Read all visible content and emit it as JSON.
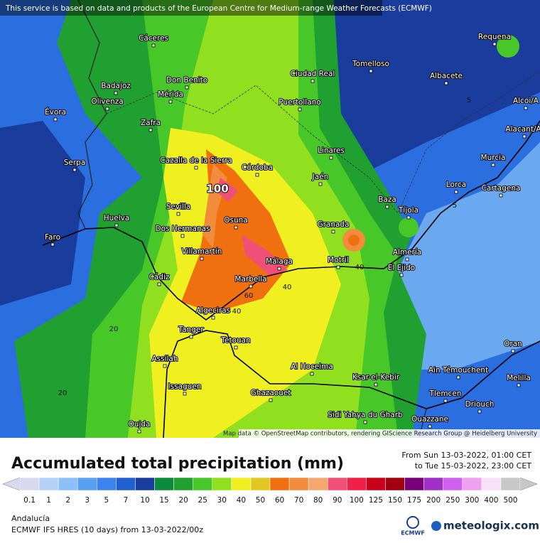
{
  "notice": "This service is based on data and products of the European Centre for Medium-range Weather Forecasts (ECMWF)",
  "attribution": "Map data © OpenStreetMap contributors, rendering GIScience Research Group @ Heidelberg University",
  "places": [
    "Cáceres",
    "Requena",
    "Tomelloso",
    "Ciudad Real",
    "Don Benito",
    "Badajoz",
    "Albacete",
    "Mérida",
    "Olivenza",
    "Puertollano",
    "Évora",
    "Zafra",
    "Alcoi/A",
    "Alacant/Al",
    "Linares",
    "Cazalla de la Sierra",
    "Córdoba",
    "Serpa",
    "Jaén",
    "Murcia",
    "Lorca",
    "Cartagena",
    "Baza",
    "Tíjola",
    "Sevilla",
    "Huelva",
    "Osuna",
    "Granada",
    "Dos Hermanas",
    "Faro",
    "Almería",
    "Villamartín",
    "Motril",
    "Málaga",
    "El Ejido",
    "Cádiz",
    "Marbella",
    "Algeciras",
    "Tanger",
    "Tetouan",
    "Oran",
    "Assilah",
    "Al Hoceima",
    "Ain Témouchent",
    "Melilla",
    "Ksar-el-Kebir",
    "Issaguen",
    "Ghazaouet",
    "Tlemcen",
    "Driouch",
    "Sidi Yahya du Gharb",
    "Oujda",
    "Ouazzane"
  ],
  "contour_labels": [
    100,
    60,
    40,
    40,
    40,
    20,
    20,
    5,
    5
  ],
  "legend": {
    "title": "Accumulated total precipitation (mm)",
    "period": [
      "From Sun 13-03-2022, 01:00 CET",
      "to Tue 15-03-2022, 23:00 CET"
    ],
    "steps": [
      {
        "value": 0.1,
        "color": "#d8d8f0"
      },
      {
        "value": 1,
        "color": "#b4d2f8"
      },
      {
        "value": 2,
        "color": "#8cc0f8"
      },
      {
        "value": 3,
        "color": "#5aa0f0"
      },
      {
        "value": 5,
        "color": "#3c82f0"
      },
      {
        "value": 7,
        "color": "#2060d0"
      },
      {
        "value": 10,
        "color": "#1a3c9c"
      },
      {
        "value": 15,
        "color": "#0a8c3c"
      },
      {
        "value": 20,
        "color": "#20a030"
      },
      {
        "value": 25,
        "color": "#48c828"
      },
      {
        "value": 30,
        "color": "#90e020"
      },
      {
        "value": 40,
        "color": "#f0f020"
      },
      {
        "value": 50,
        "color": "#e0c820"
      },
      {
        "value": 60,
        "color": "#f07010"
      },
      {
        "value": 70,
        "color": "#f08c3c"
      },
      {
        "value": 80,
        "color": "#f4a870"
      },
      {
        "value": 90,
        "color": "#f05078"
      },
      {
        "value": 100,
        "color": "#f02048"
      },
      {
        "value": 125,
        "color": "#c80018"
      },
      {
        "value": 150,
        "color": "#a00010"
      },
      {
        "value": 175,
        "color": "#780078"
      },
      {
        "value": 200,
        "color": "#a030c8"
      },
      {
        "value": 250,
        "color": "#d060f0"
      },
      {
        "value": 300,
        "color": "#f0a0f0"
      },
      {
        "value": 400,
        "color": "#f8e0f8"
      },
      {
        "value": 500,
        "color": "#c8c8c8"
      }
    ]
  },
  "region": "Andalucía",
  "model": "ECMWF IFS HRES (10 days) from 13-03-2022/00z",
  "logos": [
    "ECMWF",
    "meteologix.com"
  ]
}
